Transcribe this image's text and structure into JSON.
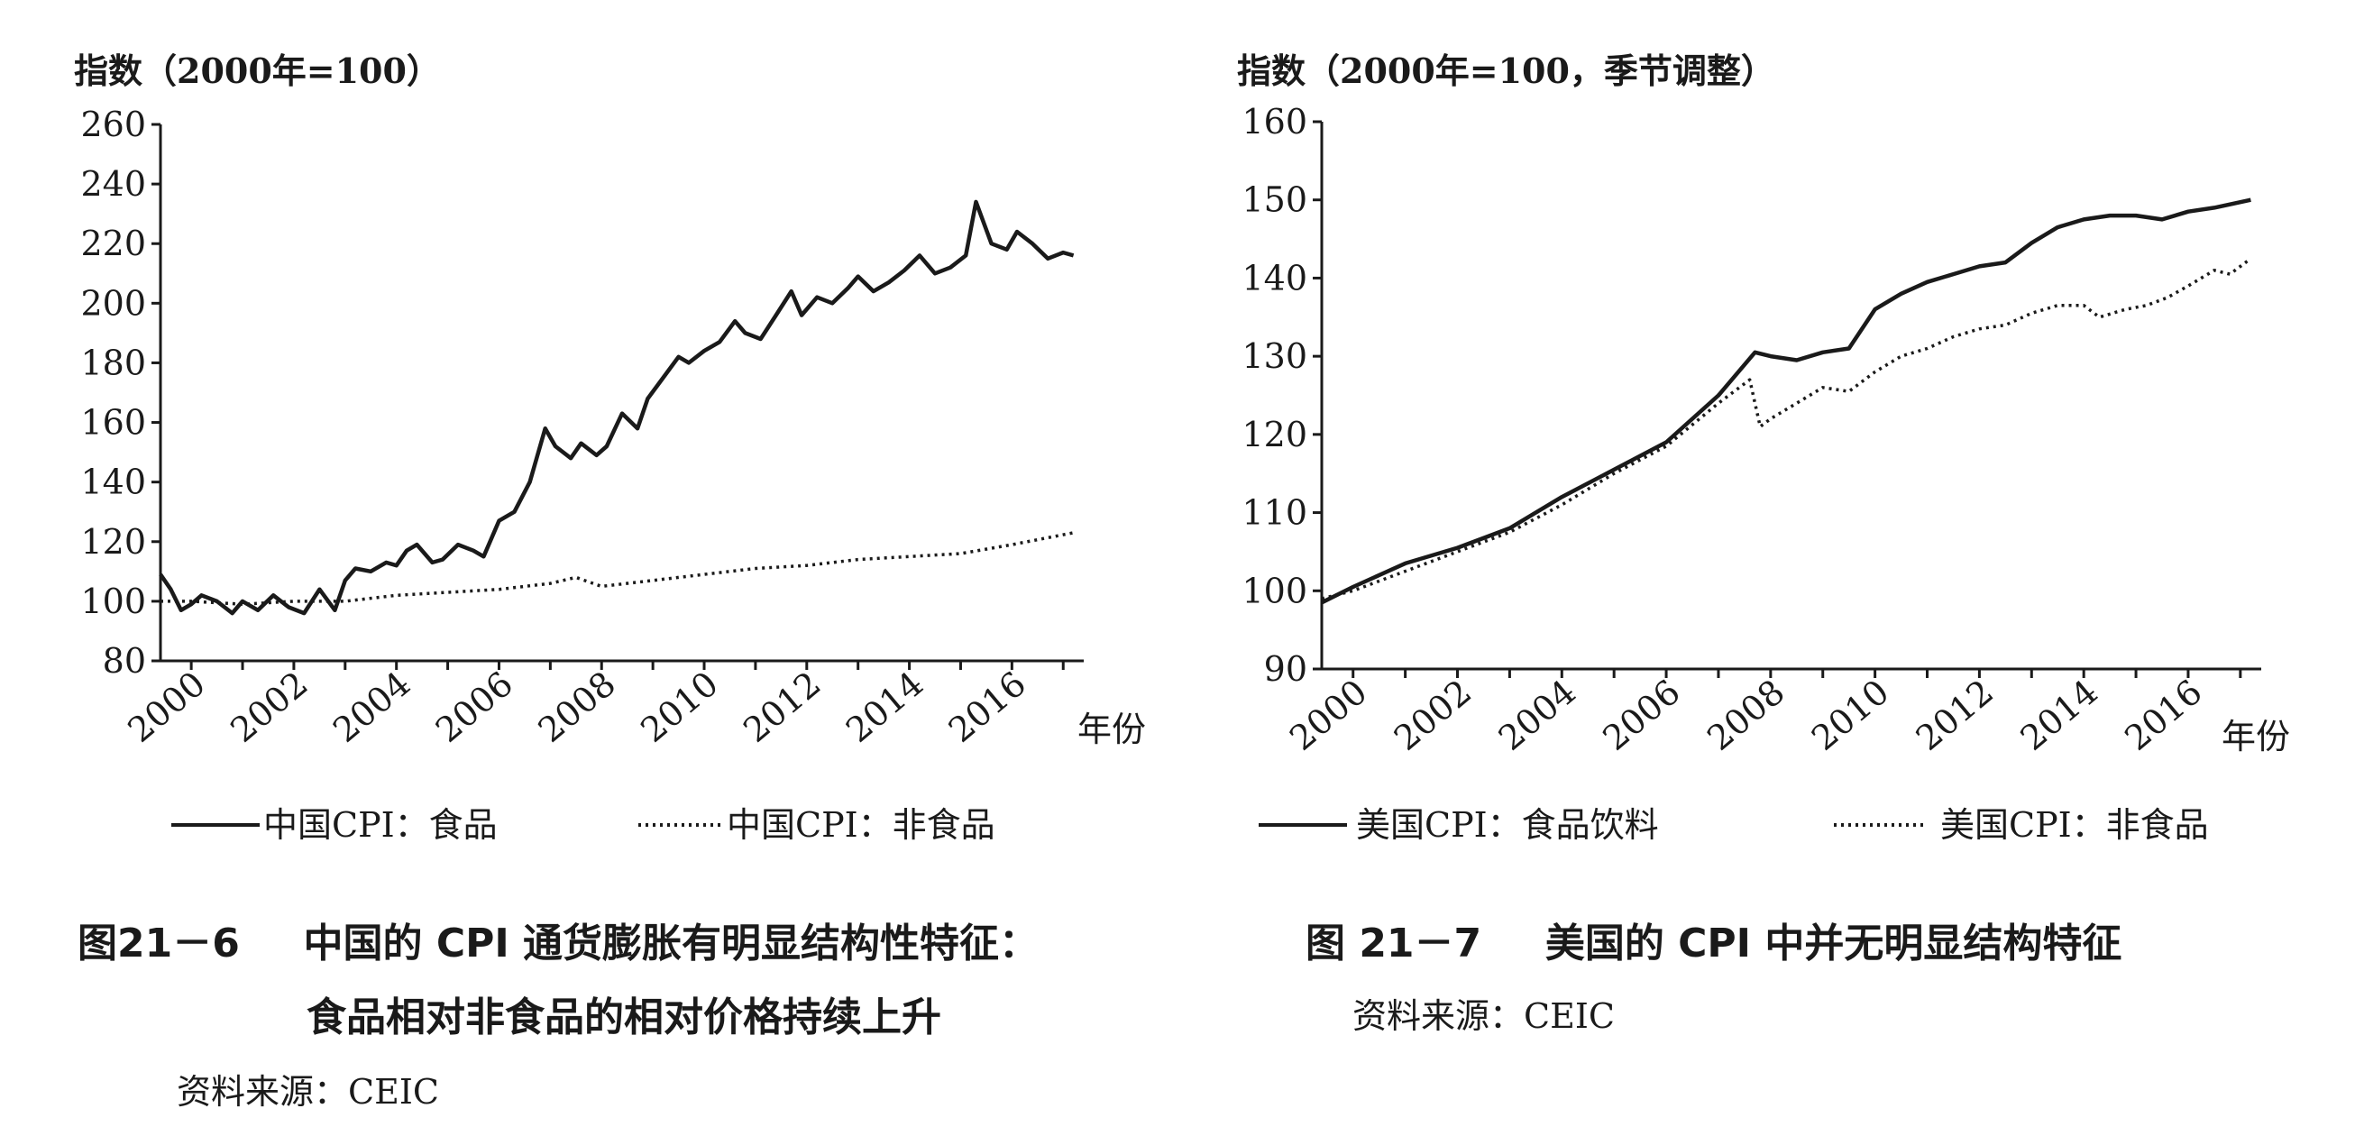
{
  "left_figure": {
    "caption_num": "图21－6",
    "caption_line1": "中国的 CPI 通货膨胀有明显结构性特征：",
    "caption_line2": "食品相对非食品的相对价格持续上升",
    "source": "资料来源：CEIC"
  },
  "right_figure": {
    "caption_num": "图 21－7",
    "caption_line1": "美国的 CPI 中并无明显结构特征",
    "source": "资料来源：CEIC"
  },
  "chart_data": [
    {
      "type": "line",
      "ylabel": "指数（2000年=100）",
      "xlabel": "年份",
      "ylim": [
        80,
        260
      ],
      "yticks": [
        "80",
        "100",
        "120",
        "140",
        "160",
        "180",
        "200",
        "220",
        "240",
        "260"
      ],
      "xlim": [
        1999.4,
        2017.4
      ],
      "xticks": [
        "2000",
        "2002",
        "2004",
        "2006",
        "2008",
        "2010",
        "2012",
        "2014",
        "2016"
      ],
      "grid": false,
      "legend_position": "bottom",
      "series": [
        {
          "name": "中国CPI：食品",
          "style": "solid",
          "x": [
            1999.4,
            1999.6,
            1999.8,
            2000.0,
            2000.2,
            2000.5,
            2000.8,
            2001.0,
            2001.3,
            2001.6,
            2001.9,
            2002.2,
            2002.5,
            2002.8,
            2003.0,
            2003.2,
            2003.5,
            2003.8,
            2004.0,
            2004.2,
            2004.4,
            2004.7,
            2004.9,
            2005.2,
            2005.5,
            2005.7,
            2006.0,
            2006.3,
            2006.6,
            2006.9,
            2007.1,
            2007.4,
            2007.6,
            2007.9,
            2008.1,
            2008.4,
            2008.7,
            2008.9,
            2009.2,
            2009.5,
            2009.7,
            2010.0,
            2010.3,
            2010.6,
            2010.8,
            2011.1,
            2011.4,
            2011.7,
            2011.9,
            2012.2,
            2012.5,
            2012.8,
            2013.0,
            2013.3,
            2013.6,
            2013.9,
            2014.2,
            2014.5,
            2014.8,
            2015.1,
            2015.3,
            2015.6,
            2015.9,
            2016.1,
            2016.4,
            2016.7,
            2017.0,
            2017.2
          ],
          "values": [
            109,
            104,
            97,
            99,
            102,
            100,
            96,
            100,
            97,
            102,
            98,
            96,
            104,
            97,
            107,
            111,
            110,
            113,
            112,
            117,
            119,
            113,
            114,
            119,
            117,
            115,
            127,
            130,
            140,
            158,
            152,
            148,
            153,
            149,
            152,
            163,
            158,
            168,
            175,
            182,
            180,
            184,
            187,
            194,
            190,
            188,
            196,
            204,
            196,
            202,
            200,
            205,
            209,
            204,
            207,
            211,
            216,
            210,
            212,
            216,
            234,
            220,
            218,
            224,
            220,
            215,
            217,
            216
          ]
        },
        {
          "name": "中国CPI：非食品",
          "style": "dotted",
          "x": [
            1999.4,
            2000.0,
            2001.0,
            2002.0,
            2003.0,
            2004.0,
            2005.0,
            2006.0,
            2007.0,
            2007.5,
            2008.0,
            2009.0,
            2010.0,
            2011.0,
            2012.0,
            2013.0,
            2014.0,
            2015.0,
            2016.0,
            2017.2
          ],
          "values": [
            100,
            100,
            99,
            100,
            100,
            102,
            103,
            104,
            106,
            108,
            105,
            107,
            109,
            111,
            112,
            114,
            115,
            116,
            119,
            123
          ]
        }
      ]
    },
    {
      "type": "line",
      "ylabel": "指数（2000年=100，季节调整）",
      "xlabel": "年份",
      "ylim": [
        90,
        160
      ],
      "yticks": [
        "90",
        "100",
        "110",
        "120",
        "130",
        "140",
        "150",
        "160"
      ],
      "xlim": [
        1999.4,
        2017.4
      ],
      "xticks": [
        "2000",
        "2002",
        "2004",
        "2006",
        "2008",
        "2010",
        "2012",
        "2014",
        "2016"
      ],
      "grid": false,
      "legend_position": "bottom",
      "series": [
        {
          "name": "美国CPI：食品饮料",
          "style": "solid",
          "x": [
            1999.4,
            2000.0,
            2001.0,
            2002.0,
            2003.0,
            2004.0,
            2005.0,
            2006.0,
            2007.0,
            2007.7,
            2008.0,
            2008.5,
            2009.0,
            2009.5,
            2010.0,
            2010.5,
            2011.0,
            2011.5,
            2012.0,
            2012.5,
            2013.0,
            2013.5,
            2014.0,
            2014.5,
            2015.0,
            2015.5,
            2016.0,
            2016.5,
            2017.2
          ],
          "values": [
            98.5,
            100.5,
            103.5,
            105.5,
            108,
            112,
            115.5,
            119,
            125,
            130.5,
            130,
            129.5,
            130.5,
            131,
            136,
            138,
            139.5,
            140.5,
            141.5,
            142,
            144.5,
            146.5,
            147.5,
            148,
            148,
            147.5,
            148.5,
            149,
            150
          ]
        },
        {
          "name": "美国CPI：非食品",
          "style": "dotted",
          "x": [
            1999.4,
            2000.0,
            2001.0,
            2002.0,
            2003.0,
            2004.0,
            2005.0,
            2006.0,
            2007.0,
            2007.6,
            2007.8,
            2008.0,
            2008.5,
            2009.0,
            2009.5,
            2010.0,
            2010.5,
            2011.0,
            2011.5,
            2012.0,
            2012.5,
            2013.0,
            2013.5,
            2014.0,
            2014.3,
            2014.8,
            2015.2,
            2015.6,
            2016.0,
            2016.5,
            2016.8,
            2017.2
          ],
          "values": [
            99,
            100,
            102.5,
            105,
            107.5,
            111,
            115,
            118.5,
            124,
            127,
            121,
            122,
            124,
            126,
            125.5,
            128,
            130,
            131,
            132.5,
            133.5,
            134,
            135.5,
            136.5,
            136.5,
            135,
            136,
            136.5,
            137.5,
            139,
            141,
            140.5,
            142.5
          ]
        }
      ]
    }
  ]
}
